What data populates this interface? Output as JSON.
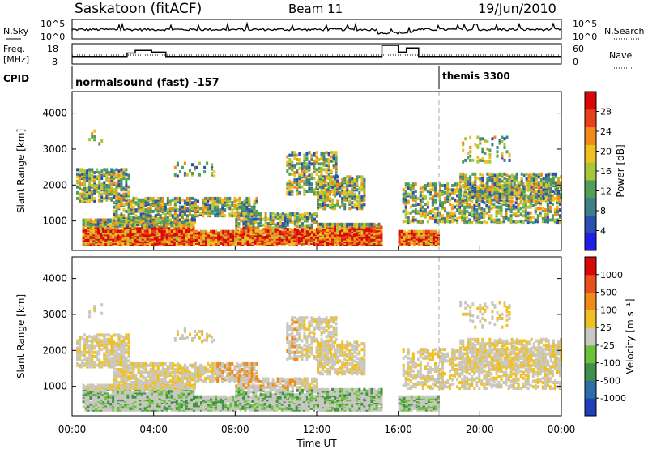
{
  "header": {
    "station": "Saskatoon (fitACF)",
    "beam": "Beam 11",
    "date": "19/Jun/2010"
  },
  "nsky_panel": {
    "left_label": "N.Sky",
    "left_ticks": [
      "10^5",
      "10^0"
    ],
    "right_ticks": [
      "10^5",
      "10^0"
    ],
    "right_label": "N.Search"
  },
  "freq_panel": {
    "left_label_1": "Freq.",
    "left_label_2": "[MHz]",
    "left_ticks": [
      "18",
      "8"
    ],
    "right_ticks": [
      "60",
      "0"
    ],
    "right_label": "Nave"
  },
  "cpid_panel": {
    "label": "CPID",
    "program_1": "normalsound (fast) -157",
    "program_2": "themis 3300",
    "program_2_start_hour": 18.0
  },
  "time_axis": {
    "xlabel": "Time UT",
    "tick_labels": [
      "00:00",
      "04:00",
      "08:00",
      "12:00",
      "16:00",
      "20:00",
      "00:00"
    ],
    "tick_hours": [
      0,
      4,
      8,
      12,
      16,
      20,
      24
    ]
  },
  "chart_data": [
    {
      "type": "heatmap",
      "name": "power",
      "ylabel": "Slant Range [km]",
      "yticks": [
        1000,
        2000,
        3000,
        4000
      ],
      "ylim": [
        180,
        4600
      ],
      "xlim_hours": [
        0,
        24
      ],
      "colorbar": {
        "label": "Power [dB]",
        "ticks": [
          "28",
          "24",
          "20",
          "16",
          "12",
          "8",
          "4"
        ],
        "colors": [
          "#1f1fe6",
          "#2a4fb0",
          "#3f7f8a",
          "#4fa05a",
          "#a7c63a",
          "#f0c020",
          "#f08a18",
          "#e8401a",
          "#d80808"
        ]
      },
      "data_gap_hours": [
        15.2,
        16.0
      ]
    },
    {
      "type": "heatmap",
      "name": "velocity",
      "ylabel": "Slant Range [km]",
      "yticks": [
        1000,
        2000,
        3000,
        4000
      ],
      "ylim": [
        180,
        4600
      ],
      "xlim_hours": [
        0,
        24
      ],
      "colorbar": {
        "label": "Velocity [m s⁻¹]",
        "ticks": [
          "1000",
          "500",
          "100",
          "25",
          "-25",
          "-100",
          "-500",
          "-1000"
        ],
        "colors": [
          "#1f3fb8",
          "#2a6fa8",
          "#3f8f4a",
          "#6cc03a",
          "#c8c8c0",
          "#f0c020",
          "#f08a18",
          "#e8501a",
          "#d80808"
        ]
      },
      "data_gap_hours": [
        15.2,
        16.0
      ]
    }
  ]
}
